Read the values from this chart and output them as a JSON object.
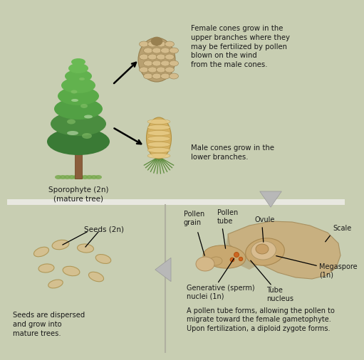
{
  "bg_color": "#c8ceb2",
  "bg_bottom": "#c8ceb2",
  "divider_color": "#ffffff",
  "text_color": "#1a1a1a",
  "arrow_gray": "#b8b8b8",
  "arrow_gray_ec": "#999999",
  "tree_trunk": "#8B5E3C",
  "tree_greens": [
    "#3a7a35",
    "#4a8c3f",
    "#52a044",
    "#5aaa48",
    "#62b24e",
    "#6aba54"
  ],
  "tree_light": "#a8d890",
  "cone_female_body": "#b8a070",
  "cone_female_scale": "#d4bc8c",
  "cone_female_dark": "#988050",
  "cone_male_body": "#d4b060",
  "cone_male_light": "#e8cc88",
  "cone_male_dark": "#b09040",
  "needle_color": "#5a8a3a",
  "grass_color": "#7aaa50",
  "seed_fill": "#d4c090",
  "seed_ec": "#b09858",
  "scale_fill": "#c8b080",
  "scale_dark": "#a89060",
  "pollen_fill": "#d4b888",
  "pollen_dark": "#b09060",
  "ovule_fill": "#c8a868",
  "orange_dot": "#cc6622",
  "texts": {
    "sporophyte": "Sporophyte (2n)\n(mature tree)",
    "female_cone_desc": "Female cones grow in the\nupper branches where they\nmay be fertilized by pollen\nblown on the wind\nfrom the male cones.",
    "male_cone_desc": "Male cones grow in the\nlower branches.",
    "seeds_label": "Seeds (2n)",
    "pollen_grain": "Pollen\ngrain",
    "pollen_tube": "Pollen\ntube",
    "ovule": "Ovule",
    "scale": "Scale",
    "megaspore": "Megaspore\n(1n)",
    "generative": "Generative (sperm)\nnuclei (1n)",
    "tube_nucleus": "Tube\nnucleus",
    "seeds_dispersed": "Seeds are dispersed\nand grow into\nmature trees.",
    "pollen_desc": "A pollen tube forms, allowing the pollen to\nmigrate toward the female gametophyte.\nUpon fertilization, a diploid zygote forms."
  },
  "font_size_main": 8.0,
  "font_size_label": 7.5,
  "font_size_small": 7.0
}
